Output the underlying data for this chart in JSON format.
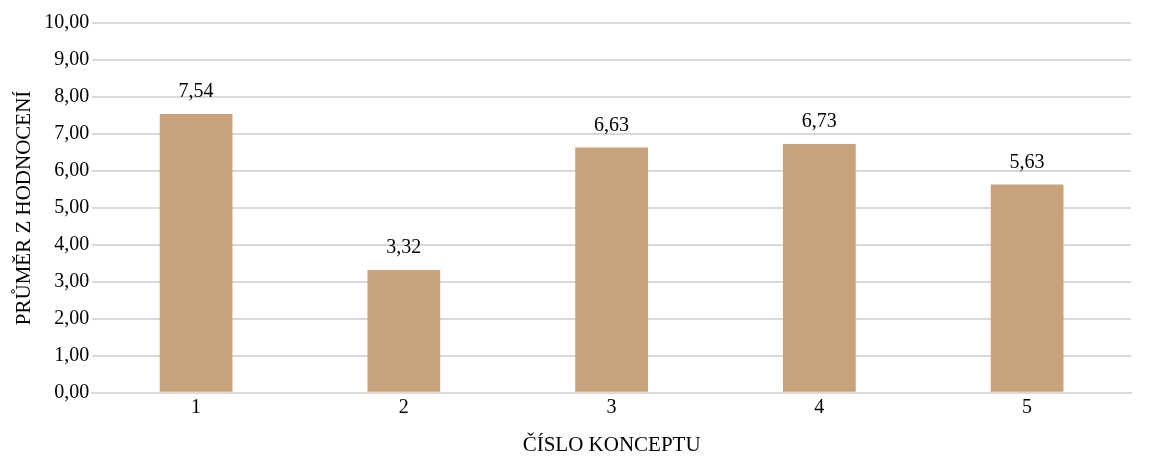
{
  "chart_data": {
    "type": "bar",
    "xlabel": "ČÍSLO KONCEPTU",
    "ylabel": "PRŮMĚR Z HODNOCENÍ",
    "categories": [
      "1",
      "2",
      "3",
      "4",
      "5"
    ],
    "values": [
      7.54,
      3.32,
      6.63,
      6.73,
      5.63
    ],
    "value_labels": [
      "7,54",
      "3,32",
      "6,63",
      "6,73",
      "5,63"
    ],
    "color": "#c8a27a",
    "ylim": [
      0,
      10
    ],
    "yticks": [
      {
        "value": 0,
        "label": "0,00"
      },
      {
        "value": 1,
        "label": "1,00"
      },
      {
        "value": 2,
        "label": "2,00"
      },
      {
        "value": 3,
        "label": "3,00"
      },
      {
        "value": 4,
        "label": "4,00"
      },
      {
        "value": 5,
        "label": "5,00"
      },
      {
        "value": 6,
        "label": "6,00"
      },
      {
        "value": 7,
        "label": "7,00"
      },
      {
        "value": 8,
        "label": "8,00"
      },
      {
        "value": 9,
        "label": "9,00"
      },
      {
        "value": 10,
        "label": "10,00"
      }
    ],
    "grid": "y",
    "legend": false
  }
}
